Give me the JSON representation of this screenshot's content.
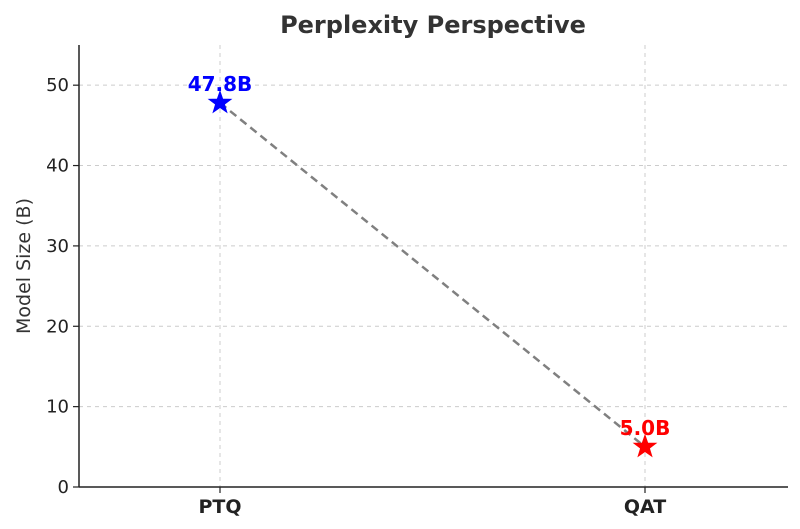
{
  "chart_data": {
    "type": "line",
    "title": "Perplexity Perspective",
    "xlabel": "",
    "ylabel": "Model Size (B)",
    "categories": [
      "PTQ",
      "QAT"
    ],
    "values": [
      47.8,
      5.0
    ],
    "data_labels": [
      "47.8B",
      "5.0B"
    ],
    "point_colors": [
      "#0000ff",
      "#ff0000"
    ],
    "marker": "star",
    "line_color": "#808080",
    "line_style": "dashed",
    "ylim": [
      0,
      55
    ],
    "yticks": [
      0,
      10,
      20,
      30,
      40,
      50
    ],
    "grid": true,
    "legend": "none"
  }
}
